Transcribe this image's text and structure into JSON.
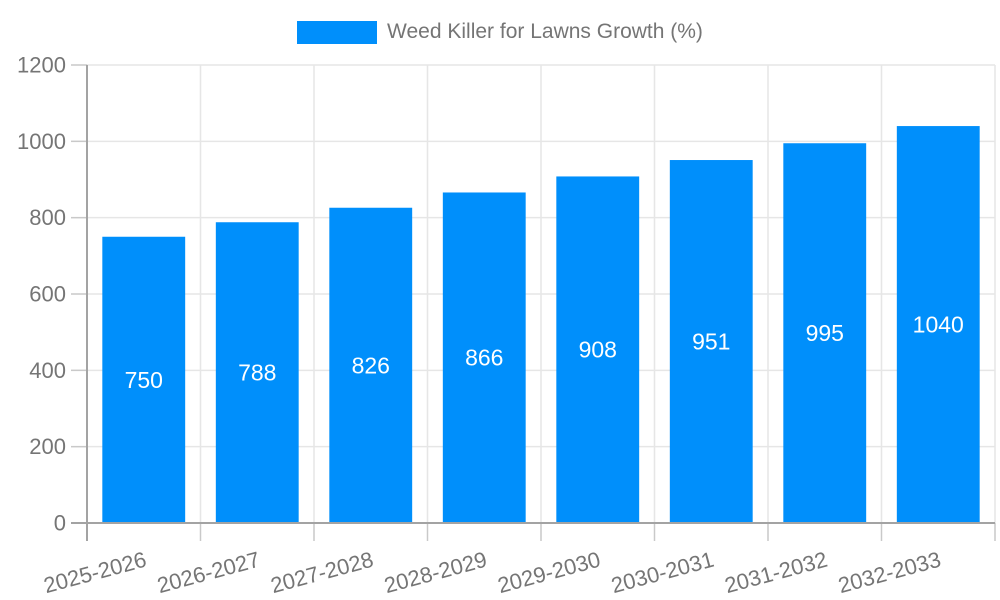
{
  "chart_data": {
    "type": "bar",
    "categories": [
      "2025-2026",
      "2026-2027",
      "2027-2028",
      "2028-2029",
      "2029-2030",
      "2030-2031",
      "2031-2032",
      "2032-2033"
    ],
    "series": [
      {
        "name": "Weed Killer for Lawns Growth (%)",
        "values": [
          750,
          788,
          826,
          866,
          908,
          951,
          995,
          1040
        ]
      }
    ],
    "title": "",
    "xlabel": "",
    "ylabel": "",
    "ylim": [
      0,
      1200
    ],
    "ytick_step": 200,
    "grid": true,
    "x_label_rotation": -15,
    "legend": {
      "position": "top",
      "entries": [
        {
          "label": "Weed Killer for Lawns Growth (%)",
          "color": "#008FFB"
        }
      ]
    },
    "colors": {
      "bar": "#008FFB",
      "value_label": "#ffffff",
      "axis_label": "#757575",
      "gridline": "#e6e6e6",
      "tick": "#c9c9c9",
      "axis_line": "#a3a3a3"
    }
  }
}
